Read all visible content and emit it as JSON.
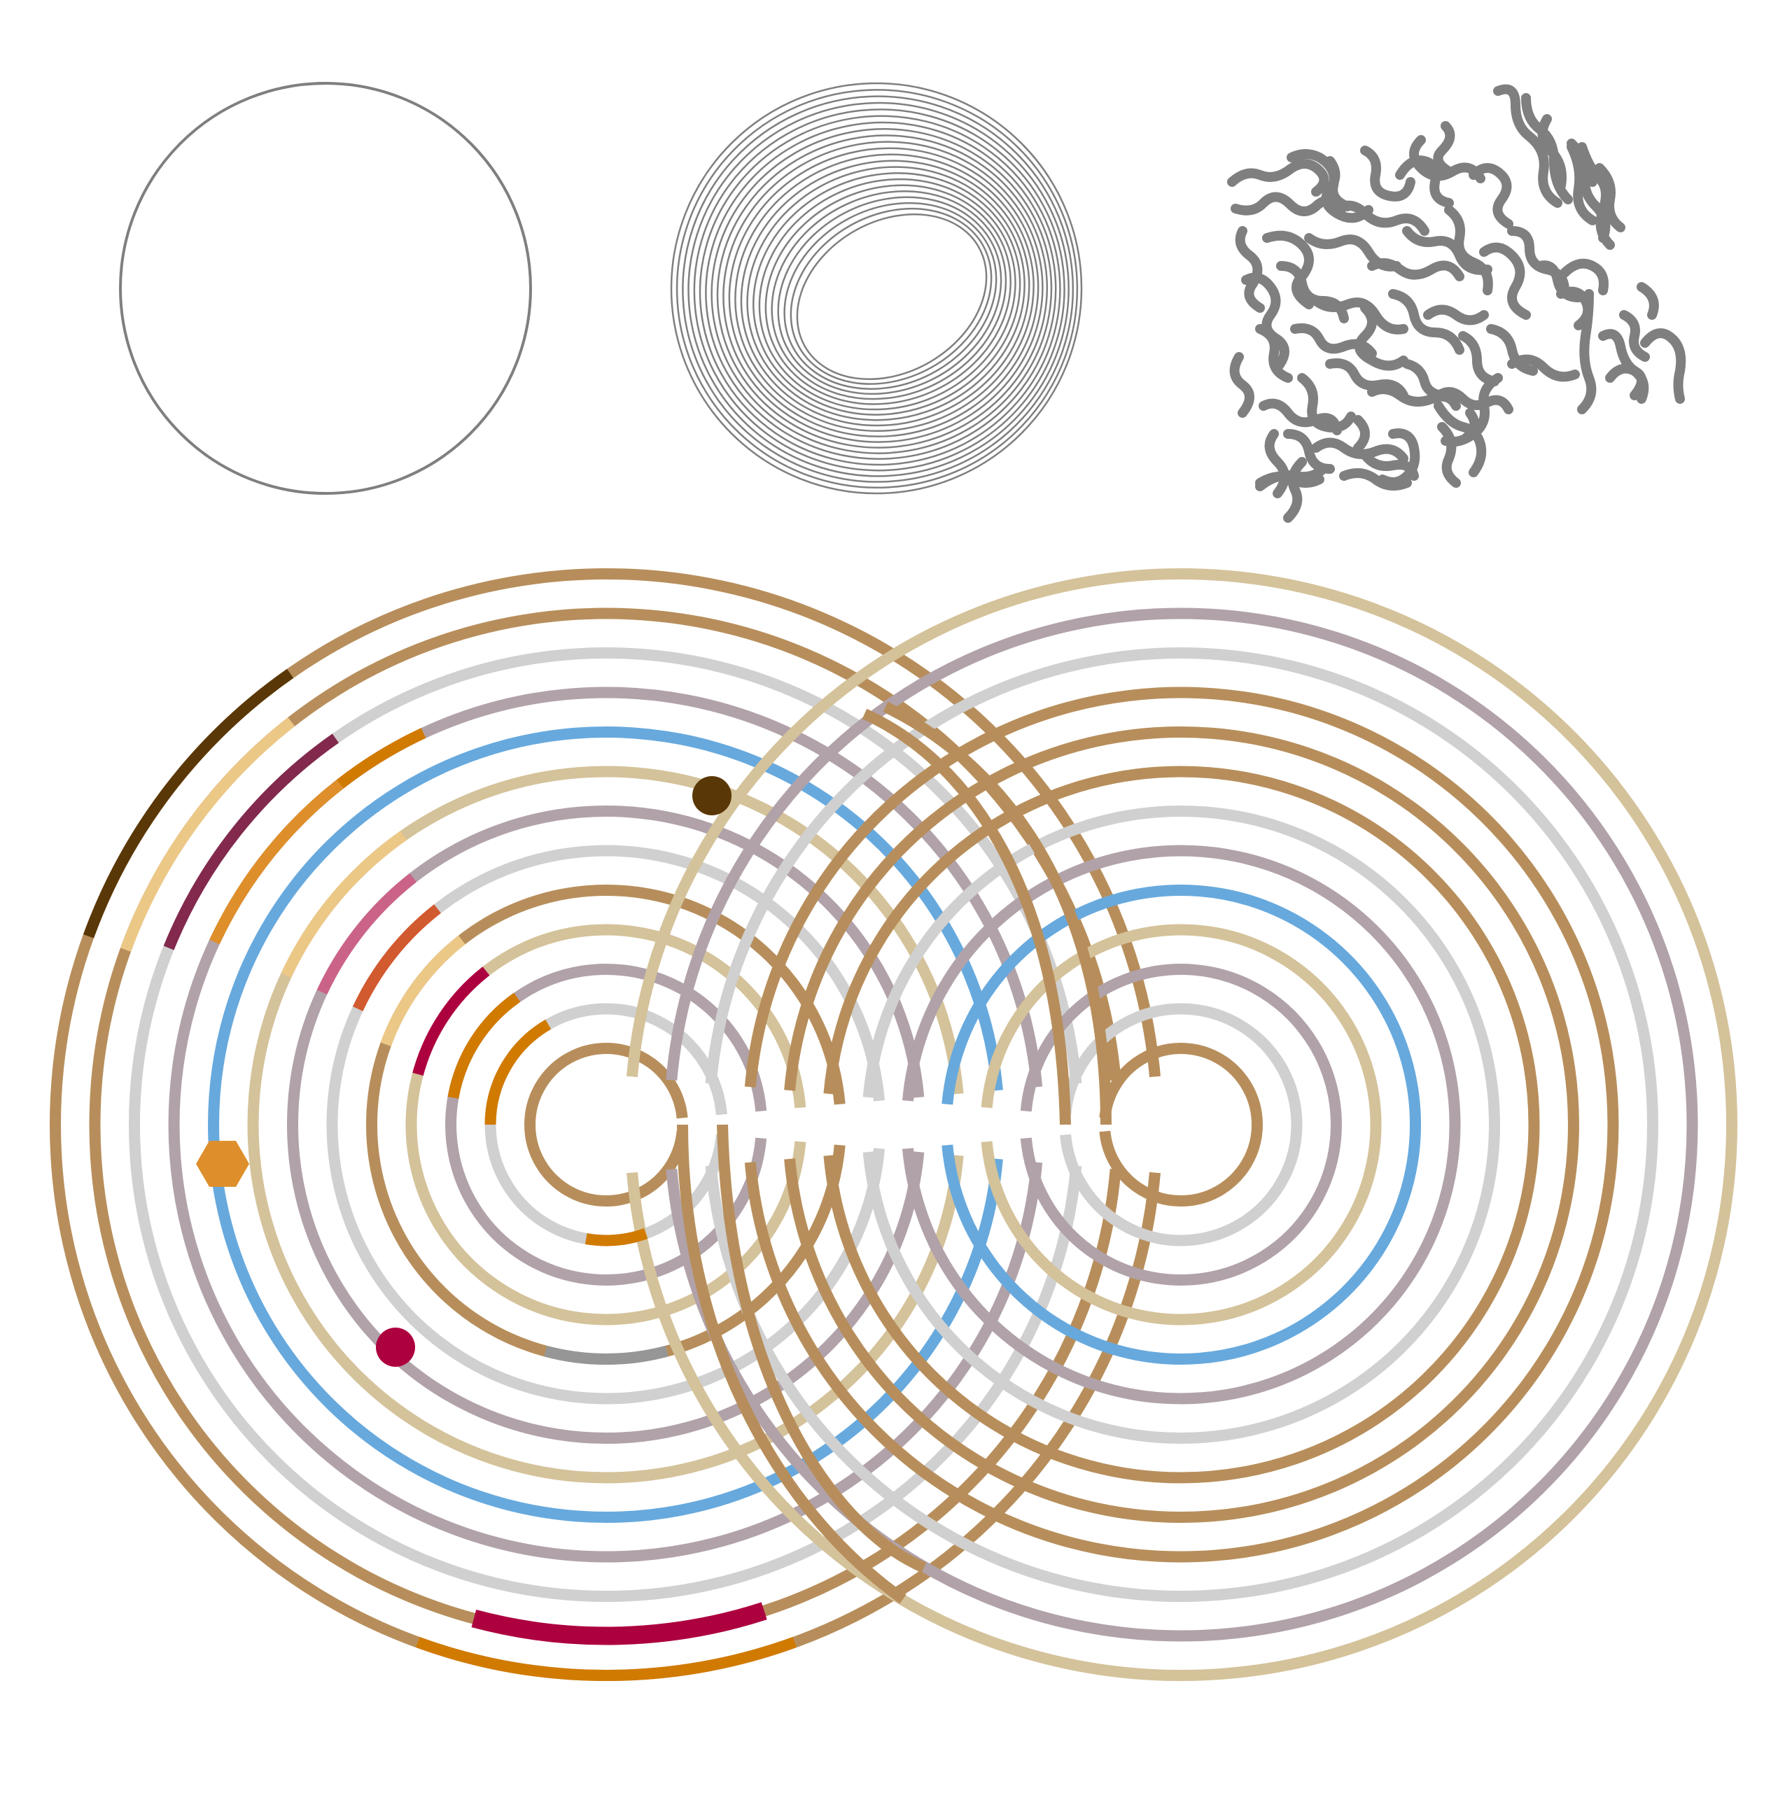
{
  "figure": {
    "background": "#ffffff",
    "panels": [
      {
        "id": "single-circle",
        "stroke": "#7f7f7f"
      },
      {
        "id": "nested-ellipses",
        "stroke": "#7f7f7f",
        "ring_count": 22
      },
      {
        "id": "labyrinth-worms",
        "stroke": "#7f7f7f"
      }
    ]
  },
  "maze": {
    "type": "double-spiral-labyrinth",
    "ring_count": 13,
    "palette": {
      "bronze": "#b78e5b",
      "gray": "#d0d0d0",
      "mauve": "#b1a2a9",
      "sand": "#d4c29a",
      "blue": "#67a9dd",
      "dark-brown": "#5a3707",
      "light-tan": "#ecc887",
      "plum": "#82294d",
      "orange": "#d17a00",
      "amber": "#de8f2b",
      "pink": "#cb6388",
      "rust": "#d25a2f",
      "crimson": "#ad003f",
      "slate": "#969696"
    },
    "markers": [
      {
        "name": "start-dot",
        "color": "#5a3707"
      },
      {
        "name": "crimson-dot",
        "color": "#ad003f"
      },
      {
        "name": "hexagon",
        "color": "#de8f2b"
      }
    ]
  }
}
